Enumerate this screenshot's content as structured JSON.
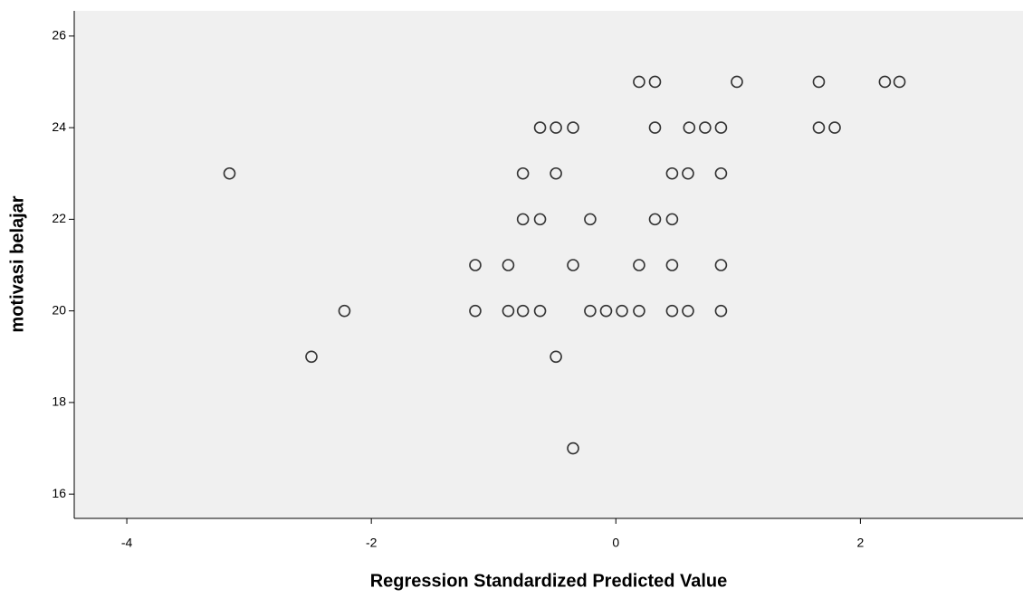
{
  "chart_data": {
    "type": "scatter",
    "xlabel": "Regression Standardized Predicted Value",
    "ylabel": "motivasi belajar",
    "x": [
      0.19,
      0.32,
      0.99,
      1.66,
      2.2,
      2.32,
      -0.62,
      -0.49,
      -0.35,
      0.32,
      0.6,
      0.73,
      0.86,
      1.66,
      1.79,
      -3.16,
      -0.76,
      -0.49,
      0.46,
      0.59,
      0.86,
      -0.76,
      -0.62,
      -0.21,
      0.32,
      0.46,
      -1.15,
      -0.88,
      -0.35,
      0.19,
      0.46,
      0.86,
      -2.22,
      -1.15,
      -0.88,
      -0.76,
      -0.62,
      -0.21,
      -0.08,
      0.05,
      0.19,
      0.46,
      0.59,
      0.86,
      -2.49,
      -0.49,
      -0.35
    ],
    "y": [
      25,
      25,
      25,
      25,
      25,
      25,
      24,
      24,
      24,
      24,
      24,
      24,
      24,
      24,
      24,
      23,
      23,
      23,
      23,
      23,
      23,
      22,
      22,
      22,
      22,
      22,
      21,
      21,
      21,
      21,
      21,
      21,
      20,
      20,
      20,
      20,
      20,
      20,
      20,
      20,
      20,
      20,
      20,
      20,
      19,
      19,
      17
    ],
    "xlim": [
      -4.43,
      3.33
    ],
    "ylim": [
      15.47,
      26.55
    ],
    "xticks": [
      -4,
      -2,
      0,
      2
    ],
    "yticks": [
      16,
      18,
      20,
      22,
      24,
      26
    ],
    "plot_background": "#f0f0f0",
    "marker_color": "#333333"
  }
}
